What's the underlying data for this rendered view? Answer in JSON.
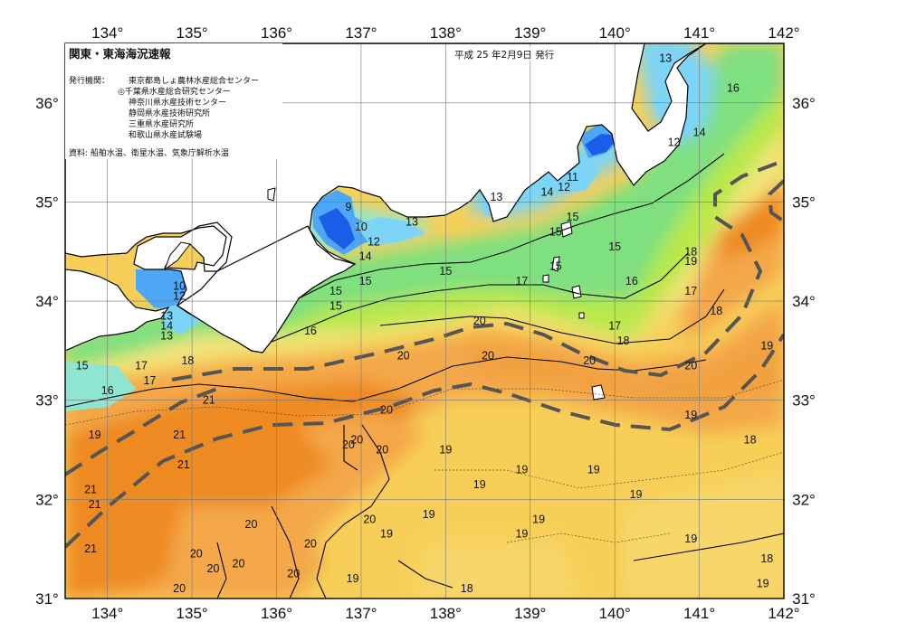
{
  "title": "関東・東海海況速報",
  "issue_date": "平成 25 年2月9日 発行",
  "issuer": {
    "label": "発行機関：",
    "agencies": [
      "東京都島しょ農林水産総合センター",
      "◎千葉県水産総合研究センター",
      "神奈川県水産技術センター",
      "静岡県水産技術研究所",
      "三重県水産研究所",
      "和歌山県水産試験場"
    ]
  },
  "sources": "資料: 船舶水温、衛星水温、気象庁解析水温",
  "colors": {
    "t9": "#1a5de8",
    "t12": "#4ea6f7",
    "t13": "#7cd4f7",
    "t14": "#8fe6d0",
    "t15": "#7fe07f",
    "t16": "#96e85a",
    "t17": "#b9e84a",
    "t18": "#f2e47a",
    "t19": "#f7cf58",
    "t20": "#f4a84a",
    "t21": "#ee8a22",
    "land": "#ffffff",
    "kuroshio_axis": "#555555"
  },
  "chart_data": {
    "type": "heatmap",
    "variable": "sea surface temperature (°C)",
    "xlim": [
      133.5,
      142.0
    ],
    "ylim": [
      31.0,
      36.6
    ],
    "x_ticks": [
      "134°",
      "135°",
      "136°",
      "137°",
      "138°",
      "139°",
      "140°",
      "141°",
      "142°"
    ],
    "x_tick_values": [
      134,
      135,
      136,
      137,
      138,
      139,
      140,
      141,
      142
    ],
    "y_ticks": [
      "31°",
      "32°",
      "33°",
      "34°",
      "35°",
      "36°"
    ],
    "y_tick_values": [
      31,
      32,
      33,
      34,
      35,
      36
    ],
    "grid": true,
    "isotherm_labels": [
      {
        "lon": 140.6,
        "lat": 36.45,
        "text": "13"
      },
      {
        "lon": 141.4,
        "lat": 36.15,
        "text": "16"
      },
      {
        "lon": 141.0,
        "lat": 35.7,
        "text": "14"
      },
      {
        "lon": 140.7,
        "lat": 35.6,
        "text": "12"
      },
      {
        "lon": 139.5,
        "lat": 35.25,
        "text": "11"
      },
      {
        "lon": 139.4,
        "lat": 35.15,
        "text": "12"
      },
      {
        "lon": 139.2,
        "lat": 35.1,
        "text": "14"
      },
      {
        "lon": 138.6,
        "lat": 35.05,
        "text": "13"
      },
      {
        "lon": 139.5,
        "lat": 34.85,
        "text": "15"
      },
      {
        "lon": 139.3,
        "lat": 34.7,
        "text": "15"
      },
      {
        "lon": 140.0,
        "lat": 34.55,
        "text": "15"
      },
      {
        "lon": 139.3,
        "lat": 34.35,
        "text": "15"
      },
      {
        "lon": 140.2,
        "lat": 34.2,
        "text": "16"
      },
      {
        "lon": 140.9,
        "lat": 34.5,
        "text": "18"
      },
      {
        "lon": 140.9,
        "lat": 34.4,
        "text": "19"
      },
      {
        "lon": 140.9,
        "lat": 34.1,
        "text": "17"
      },
      {
        "lon": 141.2,
        "lat": 33.9,
        "text": "18"
      },
      {
        "lon": 141.8,
        "lat": 33.55,
        "text": "19"
      },
      {
        "lon": 140.9,
        "lat": 33.35,
        "text": "20"
      },
      {
        "lon": 140.0,
        "lat": 33.75,
        "text": "17"
      },
      {
        "lon": 140.1,
        "lat": 33.6,
        "text": "18"
      },
      {
        "lon": 139.7,
        "lat": 33.4,
        "text": "20"
      },
      {
        "lon": 138.5,
        "lat": 33.45,
        "text": "20"
      },
      {
        "lon": 138.4,
        "lat": 33.8,
        "text": "20"
      },
      {
        "lon": 138.9,
        "lat": 34.2,
        "text": "17"
      },
      {
        "lon": 138.0,
        "lat": 34.3,
        "text": "15"
      },
      {
        "lon": 137.05,
        "lat": 34.2,
        "text": "15"
      },
      {
        "lon": 137.05,
        "lat": 34.45,
        "text": "14"
      },
      {
        "lon": 137.15,
        "lat": 34.6,
        "text": "12"
      },
      {
        "lon": 137.0,
        "lat": 34.75,
        "text": "10"
      },
      {
        "lon": 136.85,
        "lat": 34.95,
        "text": "9"
      },
      {
        "lon": 137.6,
        "lat": 34.8,
        "text": "13"
      },
      {
        "lon": 136.7,
        "lat": 34.1,
        "text": "15"
      },
      {
        "lon": 136.7,
        "lat": 33.95,
        "text": "15"
      },
      {
        "lon": 136.4,
        "lat": 33.7,
        "text": "16"
      },
      {
        "lon": 137.5,
        "lat": 33.45,
        "text": "20"
      },
      {
        "lon": 137.3,
        "lat": 32.9,
        "text": "20"
      },
      {
        "lon": 136.85,
        "lat": 32.55,
        "text": "20"
      },
      {
        "lon": 136.95,
        "lat": 32.6,
        "text": "20"
      },
      {
        "lon": 137.25,
        "lat": 32.5,
        "text": "20"
      },
      {
        "lon": 138.0,
        "lat": 32.5,
        "text": "19"
      },
      {
        "lon": 138.4,
        "lat": 32.15,
        "text": "19"
      },
      {
        "lon": 138.9,
        "lat": 32.3,
        "text": "19"
      },
      {
        "lon": 139.75,
        "lat": 32.3,
        "text": "19"
      },
      {
        "lon": 140.25,
        "lat": 32.05,
        "text": "19"
      },
      {
        "lon": 140.9,
        "lat": 32.85,
        "text": "19"
      },
      {
        "lon": 141.6,
        "lat": 32.6,
        "text": "18"
      },
      {
        "lon": 140.9,
        "lat": 31.6,
        "text": "19"
      },
      {
        "lon": 141.8,
        "lat": 31.4,
        "text": "18"
      },
      {
        "lon": 141.75,
        "lat": 31.15,
        "text": "19"
      },
      {
        "lon": 139.1,
        "lat": 31.8,
        "text": "19"
      },
      {
        "lon": 138.9,
        "lat": 31.65,
        "text": "19"
      },
      {
        "lon": 137.8,
        "lat": 31.85,
        "text": "19"
      },
      {
        "lon": 137.3,
        "lat": 31.65,
        "text": "19"
      },
      {
        "lon": 137.1,
        "lat": 31.8,
        "text": "20"
      },
      {
        "lon": 136.9,
        "lat": 31.2,
        "text": "19"
      },
      {
        "lon": 138.25,
        "lat": 31.1,
        "text": "18"
      },
      {
        "lon": 136.4,
        "lat": 31.55,
        "text": "20"
      },
      {
        "lon": 136.2,
        "lat": 31.25,
        "text": "20"
      },
      {
        "lon": 135.7,
        "lat": 31.75,
        "text": "20"
      },
      {
        "lon": 135.55,
        "lat": 31.35,
        "text": "20"
      },
      {
        "lon": 135.25,
        "lat": 31.3,
        "text": "20"
      },
      {
        "lon": 135.05,
        "lat": 31.45,
        "text": "20"
      },
      {
        "lon": 134.85,
        "lat": 31.1,
        "text": "20"
      },
      {
        "lon": 133.8,
        "lat": 31.5,
        "text": "21"
      },
      {
        "lon": 133.85,
        "lat": 31.95,
        "text": "21"
      },
      {
        "lon": 133.8,
        "lat": 32.1,
        "text": "21"
      },
      {
        "lon": 134.9,
        "lat": 32.35,
        "text": "21"
      },
      {
        "lon": 134.85,
        "lat": 32.65,
        "text": "21"
      },
      {
        "lon": 135.2,
        "lat": 33.0,
        "text": "21"
      },
      {
        "lon": 133.85,
        "lat": 32.65,
        "text": "19"
      },
      {
        "lon": 134.0,
        "lat": 33.1,
        "text": "16"
      },
      {
        "lon": 133.7,
        "lat": 33.35,
        "text": "15"
      },
      {
        "lon": 134.4,
        "lat": 33.35,
        "text": "17"
      },
      {
        "lon": 134.5,
        "lat": 33.2,
        "text": "17"
      },
      {
        "lon": 134.95,
        "lat": 33.4,
        "text": "18"
      },
      {
        "lon": 134.7,
        "lat": 33.85,
        "text": "13"
      },
      {
        "lon": 134.7,
        "lat": 33.75,
        "text": "14"
      },
      {
        "lon": 134.7,
        "lat": 33.65,
        "text": "13"
      },
      {
        "lon": 134.85,
        "lat": 34.15,
        "text": "10"
      },
      {
        "lon": 134.85,
        "lat": 34.05,
        "text": "12"
      }
    ]
  }
}
